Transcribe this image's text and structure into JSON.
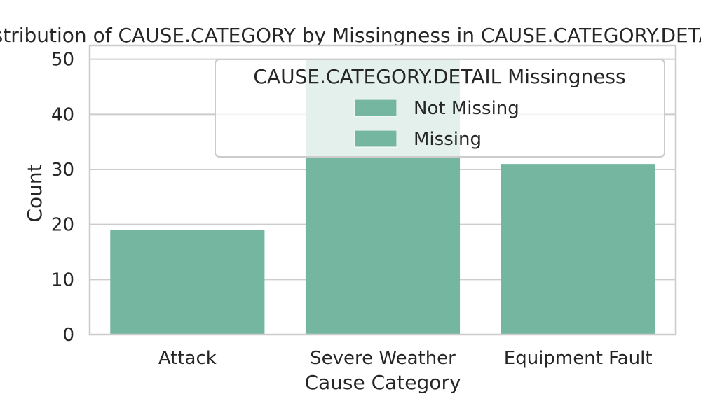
{
  "chart_data": {
    "type": "bar",
    "title": "Distribution of CAUSE.CATEGORY by Missingness in CAUSE.CATEGORY.DETAIL",
    "xlabel": "Cause Category",
    "ylabel": "Count",
    "categories": [
      "Attack",
      "Severe Weather",
      "Equipment Fault"
    ],
    "series": [
      {
        "name": "Not Missing",
        "color": "#74b6a0",
        "values": [
          19,
          50,
          31
        ]
      },
      {
        "name": "Missing",
        "color": "#74b6a0",
        "values": [
          0,
          0,
          0
        ]
      }
    ],
    "ylim": [
      0,
      52.5
    ],
    "yticks": [
      0,
      10,
      20,
      30,
      40,
      50
    ],
    "grid": true,
    "legend": {
      "title": "CAUSE.CATEGORY.DETAIL Missingness",
      "placement": "top-right",
      "entries": [
        "Not Missing",
        "Missing"
      ]
    },
    "colors": {
      "bar": "#74b6a0",
      "grid": "#cccccc",
      "spine": "#cccccc",
      "text": "#262626"
    }
  }
}
